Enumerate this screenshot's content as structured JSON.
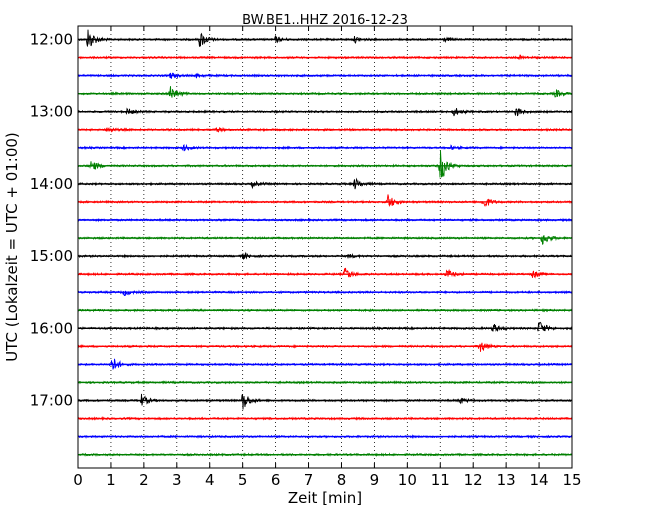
{
  "chart_data": {
    "type": "line",
    "title": "BW.BE1..HHZ 2016-12-23",
    "xlabel": "Zeit  [min]",
    "ylabel": "UTC (Lokalzeit = UTC + 01:00)",
    "xlim": [
      0,
      15
    ],
    "x_ticks": [
      "0",
      "1",
      "2",
      "3",
      "4",
      "5",
      "6",
      "7",
      "8",
      "9",
      "10",
      "11",
      "12",
      "13",
      "14",
      "15"
    ],
    "y_ticks": [
      "12:00",
      "13:00",
      "14:00",
      "15:00",
      "16:00",
      "17:00"
    ],
    "grid": "vertical dotted",
    "trace_colors": [
      "#000000",
      "#ff0000",
      "#0000ff",
      "#008000"
    ],
    "series": [
      {
        "start": "12:00",
        "color": "#000000",
        "events": [
          {
            "t": 0.3,
            "amp": 12
          },
          {
            "t": 3.7,
            "amp": 9
          },
          {
            "t": 6.0,
            "amp": 3
          },
          {
            "t": 8.4,
            "amp": 3
          },
          {
            "t": 11.1,
            "amp": 2
          }
        ]
      },
      {
        "start": "12:15",
        "color": "#ff0000",
        "events": [
          {
            "t": 13.4,
            "amp": 2
          }
        ]
      },
      {
        "start": "12:30",
        "color": "#0000ff",
        "events": [
          {
            "t": 2.8,
            "amp": 3
          },
          {
            "t": 3.6,
            "amp": 2
          }
        ]
      },
      {
        "start": "12:45",
        "color": "#008000",
        "events": [
          {
            "t": 2.8,
            "amp": 8
          },
          {
            "t": 14.5,
            "amp": 4
          }
        ]
      },
      {
        "start": "13:00",
        "color": "#000000",
        "events": [
          {
            "t": 1.5,
            "amp": 3
          },
          {
            "t": 11.4,
            "amp": 5
          },
          {
            "t": 13.3,
            "amp": 5
          }
        ]
      },
      {
        "start": "13:15",
        "color": "#ff0000",
        "events": [
          {
            "t": 0.9,
            "amp": 3
          },
          {
            "t": 4.2,
            "amp": 2
          }
        ]
      },
      {
        "start": "13:30",
        "color": "#0000ff",
        "events": [
          {
            "t": 3.2,
            "amp": 3
          },
          {
            "t": 11.3,
            "amp": 2
          }
        ]
      },
      {
        "start": "13:45",
        "color": "#008000",
        "events": [
          {
            "t": 0.4,
            "amp": 6
          },
          {
            "t": 11.0,
            "amp": 18
          }
        ]
      },
      {
        "start": "14:00",
        "color": "#000000",
        "events": [
          {
            "t": 5.3,
            "amp": 3
          },
          {
            "t": 8.4,
            "amp": 6
          }
        ]
      },
      {
        "start": "14:15",
        "color": "#ff0000",
        "events": [
          {
            "t": 9.4,
            "amp": 8
          },
          {
            "t": 12.3,
            "amp": 7
          }
        ]
      },
      {
        "start": "14:30",
        "color": "#0000ff",
        "events": []
      },
      {
        "start": "14:45",
        "color": "#008000",
        "events": [
          {
            "t": 14.1,
            "amp": 7
          }
        ]
      },
      {
        "start": "15:00",
        "color": "#000000",
        "events": [
          {
            "t": 5.0,
            "amp": 3
          },
          {
            "t": 8.2,
            "amp": 2
          }
        ]
      },
      {
        "start": "15:15",
        "color": "#ff0000",
        "events": [
          {
            "t": 8.1,
            "amp": 7
          },
          {
            "t": 11.2,
            "amp": 5
          },
          {
            "t": 13.8,
            "amp": 4
          }
        ]
      },
      {
        "start": "15:30",
        "color": "#0000ff",
        "events": [
          {
            "t": 1.4,
            "amp": 3
          }
        ]
      },
      {
        "start": "15:45",
        "color": "#008000",
        "events": []
      },
      {
        "start": "16:00",
        "color": "#000000",
        "events": [
          {
            "t": 12.6,
            "amp": 5
          },
          {
            "t": 14.0,
            "amp": 8
          }
        ]
      },
      {
        "start": "16:15",
        "color": "#ff0000",
        "events": [
          {
            "t": 12.2,
            "amp": 7
          }
        ]
      },
      {
        "start": "16:30",
        "color": "#0000ff",
        "events": [
          {
            "t": 1.0,
            "amp": 10
          }
        ]
      },
      {
        "start": "16:45",
        "color": "#008000",
        "events": []
      },
      {
        "start": "17:00",
        "color": "#000000",
        "events": [
          {
            "t": 1.9,
            "amp": 7
          },
          {
            "t": 5.0,
            "amp": 10
          },
          {
            "t": 11.6,
            "amp": 3
          }
        ]
      },
      {
        "start": "17:15",
        "color": "#ff0000",
        "events": []
      },
      {
        "start": "17:30",
        "color": "#0000ff",
        "events": []
      },
      {
        "start": "17:45",
        "color": "#008000",
        "events": []
      }
    ]
  }
}
